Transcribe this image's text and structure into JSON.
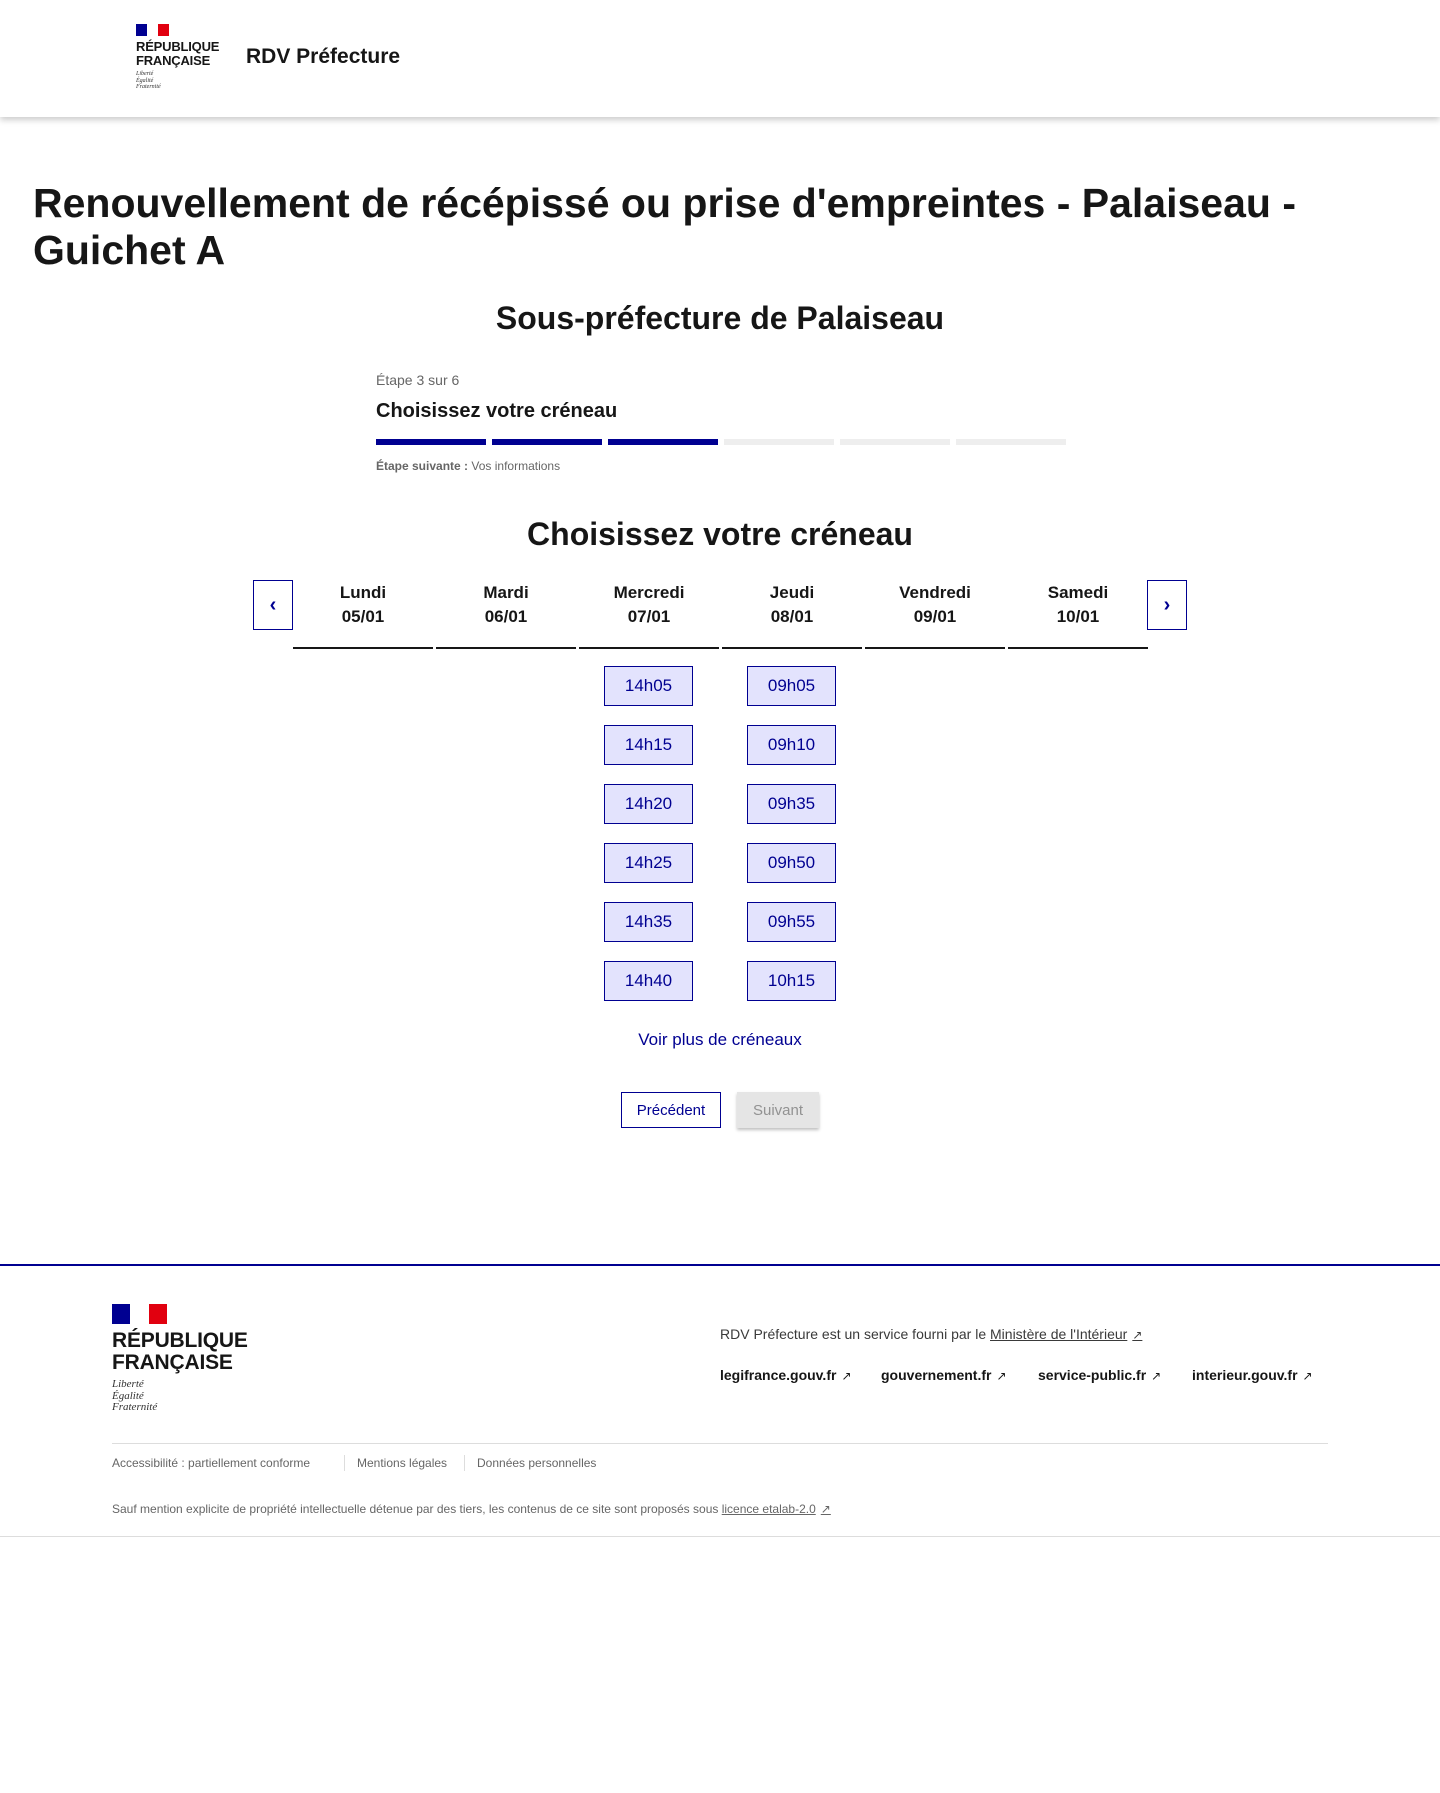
{
  "header": {
    "logo_text": [
      "RÉPUBLIQUE",
      "FRANÇAISE"
    ],
    "motto": [
      "Liberté",
      "Égalité",
      "Fraternité"
    ],
    "service_name": "RDV Préfecture"
  },
  "page_title": "Renouvellement de récépissé ou prise d'empreintes - Palaiseau - Guichet A",
  "subtitle": "Sous-préfecture de Palaiseau",
  "stepper": {
    "step_label": "Étape 3 sur 6",
    "current_title": "Choisissez votre créneau",
    "current_step": 3,
    "total_steps": 6,
    "next_label": "Étape suivante :",
    "next_value": "Vos informations",
    "active_color": "#000091",
    "inactive_color": "#eeeeee"
  },
  "slots_title": "Choisissez votre créneau",
  "calendar": {
    "prev_icon": "chevron-left-icon",
    "next_icon": "chevron-right-icon",
    "days": [
      {
        "name": "Lundi",
        "date": "05/01",
        "slots": []
      },
      {
        "name": "Mardi",
        "date": "06/01",
        "slots": []
      },
      {
        "name": "Mercredi",
        "date": "07/01",
        "slots": [
          "14h05",
          "14h15",
          "14h20",
          "14h25",
          "14h35",
          "14h40"
        ]
      },
      {
        "name": "Jeudi",
        "date": "08/01",
        "slots": [
          "09h05",
          "09h10",
          "09h35",
          "09h50",
          "09h55",
          "10h15"
        ]
      },
      {
        "name": "Vendredi",
        "date": "09/01",
        "slots": []
      },
      {
        "name": "Samedi",
        "date": "10/01",
        "slots": []
      }
    ]
  },
  "more_slots": "Voir plus de créneaux",
  "buttons": {
    "previous": "Précédent",
    "next": "Suivant"
  },
  "footer": {
    "service_text": "RDV Préfecture est un service fourni par le ",
    "ministry_link": "Ministère de l'Intérieur",
    "links": [
      "legifrance.gouv.fr",
      "gouvernement.fr",
      "service-public.fr",
      "interieur.gouv.fr"
    ],
    "bottom_links": [
      "Accessibilité : partiellement conforme",
      "Mentions légales",
      "Données personnelles"
    ],
    "license_text": "Sauf mention explicite de propriété intellectuelle détenue par des tiers, les contenus de ce site sont proposés sous ",
    "license_link": "licence etalab-2.0"
  },
  "colors": {
    "primary": "#000091",
    "slot_bg": "#e3e3fd",
    "red": "#e1000f"
  }
}
